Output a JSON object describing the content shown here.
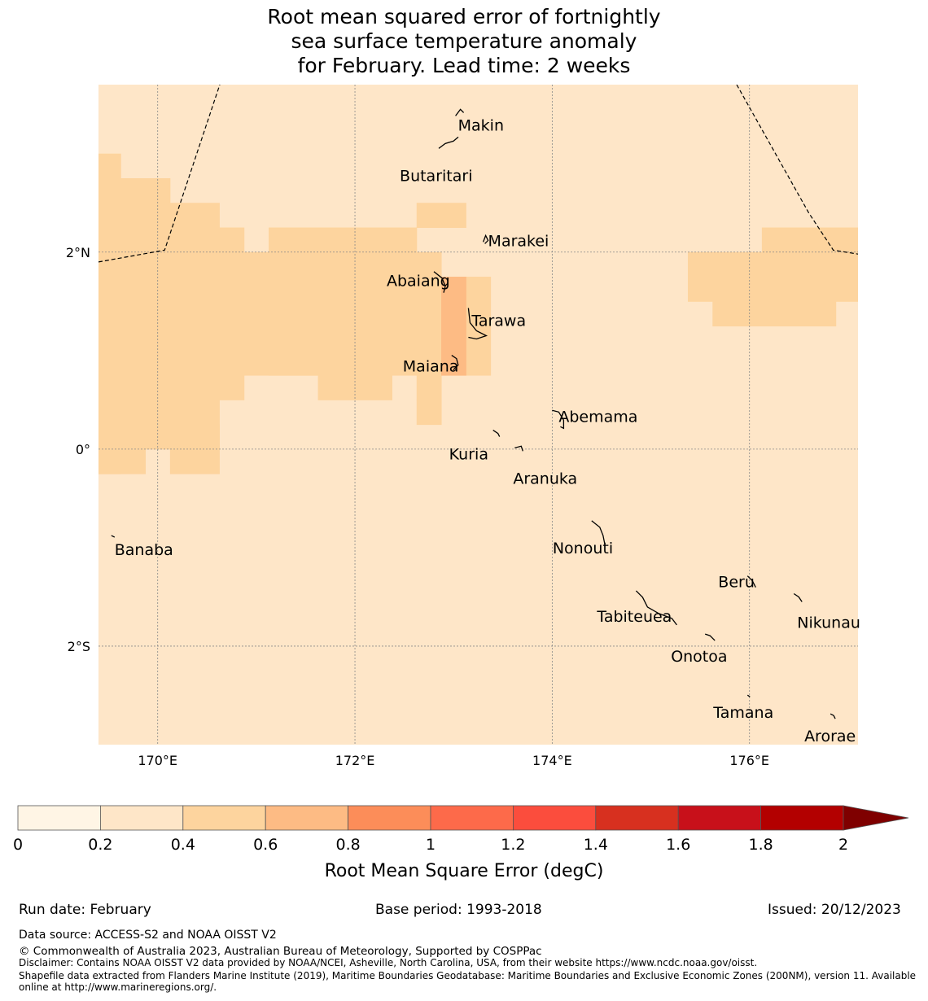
{
  "title": {
    "line1": "Root mean squared error of fortnightly",
    "line2": "sea surface temperature anomaly",
    "line3": "for February. Lead time: 2 weeks"
  },
  "map": {
    "lon_range": [
      169.4,
      177.1
    ],
    "lat_range": [
      -3.0,
      3.7
    ],
    "x_ticks": [
      {
        "value": 170,
        "label": "170°E"
      },
      {
        "value": 172,
        "label": "172°E"
      },
      {
        "value": 174,
        "label": "174°E"
      },
      {
        "value": 176,
        "label": "176°E"
      }
    ],
    "y_ticks": [
      {
        "value": 2,
        "label": "2°N"
      },
      {
        "value": 0,
        "label": "0°"
      },
      {
        "value": -2,
        "label": "2°S"
      }
    ],
    "background_class_color": "#fee6c8",
    "places": [
      {
        "name": "Makin",
        "lon": 173.02,
        "lat": 3.3
      },
      {
        "name": "Butaritari",
        "lon": 172.85,
        "lat": 2.97
      },
      {
        "name": "Marakei",
        "lon": 173.3,
        "lat": 2.02
      },
      {
        "name": "Abaiang",
        "lon": 172.8,
        "lat": 1.72
      },
      {
        "name": "Tarawa",
        "lon": 173.15,
        "lat": 1.35
      },
      {
        "name": "Maiana",
        "lon": 172.98,
        "lat": 0.87
      },
      {
        "name": "Abemama",
        "lon": 174.0,
        "lat": 0.31
      },
      {
        "name": "Kuria",
        "lon": 173.4,
        "lat": 0.11
      },
      {
        "name": "Aranuka",
        "lon": 173.62,
        "lat": -0.07
      },
      {
        "name": "Nonouti",
        "lon": 174.4,
        "lat": -0.81
      },
      {
        "name": "Banaba",
        "lon": 169.53,
        "lat": -0.96
      },
      {
        "name": "Tabiteuea",
        "lon": 174.85,
        "lat": -1.52
      },
      {
        "name": "Beru",
        "lon": 175.98,
        "lat": -1.37
      },
      {
        "name": "Nikunau",
        "lon": 176.45,
        "lat": -1.55
      },
      {
        "name": "Onotoa",
        "lon": 175.55,
        "lat": -1.96
      },
      {
        "name": "Tamana",
        "lon": 175.98,
        "lat": -2.58
      },
      {
        "name": "Arorae",
        "lon": 176.82,
        "lat": -2.77
      }
    ]
  },
  "chart_data": {
    "type": "heatmap",
    "variable": "Root Mean Square Error (degC)",
    "cell_size_deg": 0.25,
    "default_value_class": "0.2-0.4",
    "cells_0_4_to_0_6": [
      {
        "lon": [
          169.4,
          169.625
        ],
        "lat": [
          -0.25,
          3.0
        ]
      },
      {
        "lon": [
          169.625,
          170.125
        ],
        "lat": [
          0.0,
          2.75
        ]
      },
      {
        "lon": [
          170.125,
          170.625
        ],
        "lat": [
          0.0,
          2.5
        ]
      },
      {
        "lon": [
          170.625,
          170.875
        ],
        "lat": [
          0.5,
          2.25
        ]
      },
      {
        "lon": [
          170.875,
          171.625
        ],
        "lat": [
          0.75,
          2.0
        ]
      },
      {
        "lon": [
          171.125,
          172.625
        ],
        "lat": [
          0.75,
          2.25
        ]
      },
      {
        "lon": [
          171.625,
          172.375
        ],
        "lat": [
          0.5,
          0.75
        ]
      },
      {
        "lon": [
          172.625,
          172.875
        ],
        "lat": [
          0.5,
          2.0
        ]
      },
      {
        "lon": [
          172.625,
          172.875
        ],
        "lat": [
          0.25,
          0.5
        ]
      },
      {
        "lon": [
          172.875,
          173.375
        ],
        "lat": [
          0.75,
          1.75
        ]
      },
      {
        "lon": [
          172.625,
          173.125
        ],
        "lat": [
          2.25,
          2.5
        ]
      },
      {
        "lon": [
          169.4,
          169.875
        ],
        "lat": [
          -0.25,
          0.0
        ]
      },
      {
        "lon": [
          170.125,
          170.625
        ],
        "lat": [
          -0.25,
          0.25
        ]
      },
      {
        "lon": [
          175.375,
          177.1
        ],
        "lat": [
          1.5,
          2.0
        ]
      },
      {
        "lon": [
          175.625,
          176.875
        ],
        "lat": [
          1.25,
          1.5
        ]
      },
      {
        "lon": [
          176.125,
          177.1
        ],
        "lat": [
          2.0,
          2.25
        ]
      }
    ],
    "cells_0_6_to_0_8": [
      {
        "lon": [
          172.875,
          173.125
        ],
        "lat": [
          0.75,
          1.75
        ]
      }
    ],
    "eez_boundaries": [
      {
        "name": "west",
        "points": [
          [
            169.4,
            1.9
          ],
          [
            170.07,
            2.02
          ],
          [
            170.63,
            3.7
          ]
        ]
      },
      {
        "name": "east",
        "points": [
          [
            175.87,
            3.7
          ],
          [
            176.6,
            2.4
          ],
          [
            176.85,
            2.02
          ],
          [
            177.1,
            1.98
          ]
        ]
      }
    ]
  },
  "colorbar": {
    "label": "Root Mean Square Error (degC)",
    "ticks": [
      "0",
      "0.2",
      "0.4",
      "0.6",
      "0.8",
      "1",
      "1.2",
      "1.4",
      "1.6",
      "1.8",
      "2"
    ],
    "colors": [
      "#fff5e5",
      "#fee6c8",
      "#fdd49e",
      "#fdbb84",
      "#fc8d59",
      "#fd6a4a",
      "#fb4d3d",
      "#d7301f",
      "#c8101a",
      "#b30000",
      "#7f0000"
    ]
  },
  "footer": {
    "run_date": "Run date: February",
    "base_period": "Base period: 1993-2018",
    "issued": "Issued: 20/12/2023",
    "data_source": "Data source: ACCESS-S2 and NOAA OISST V2",
    "copyright": "© Commonwealth of Australia 2023, Australian Bureau of Meteorology, Supported by COSPPac",
    "disclaimer": "Disclaimer: Contains NOAA OISST V2 data provided by NOAA/NCEI, Asheville, North Carolina, USA, from their website https://www.ncdc.noaa.gov/oisst.",
    "shapefile": "Shapefile data extracted from Flanders Marine Institute (2019), Maritime Boundaries Geodatabase: Maritime Boundaries and Exclusive Economic Zones (200NM), version 11. Available online at http://www.marineregions.org/."
  }
}
